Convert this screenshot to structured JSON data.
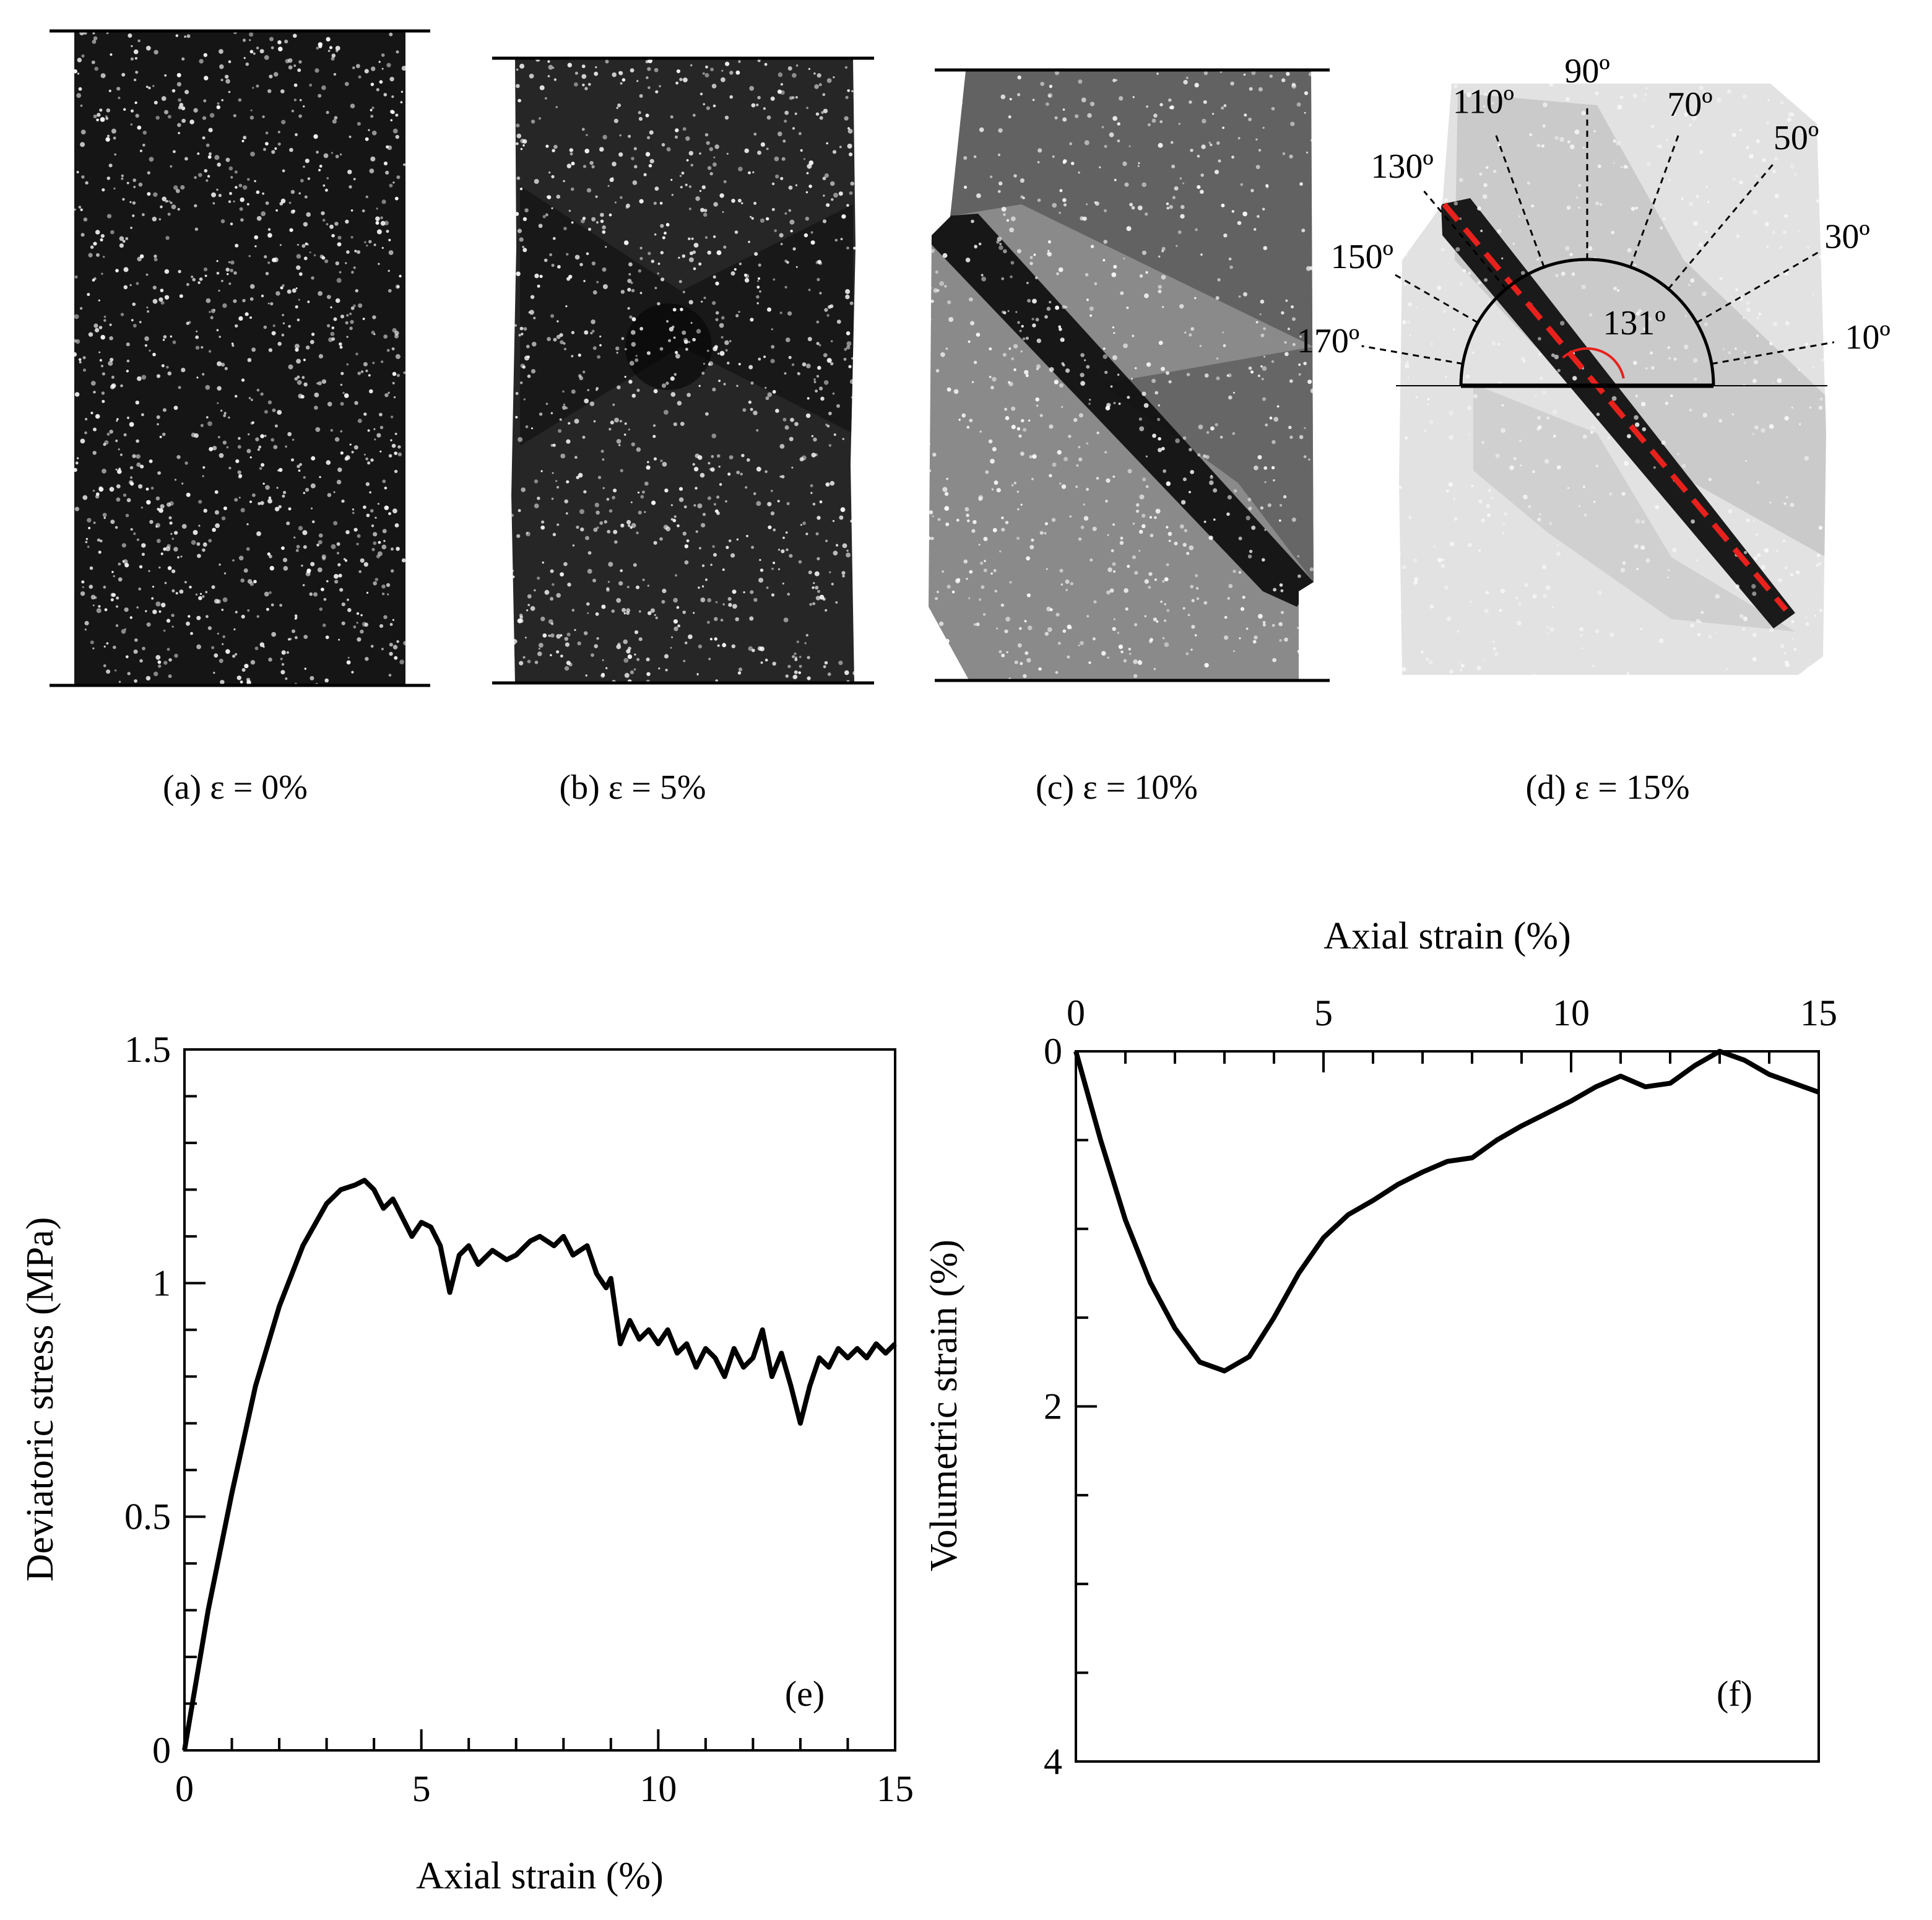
{
  "panels": [
    {
      "id": "a",
      "caption": "(a) ε = 0%",
      "tone": "#151515",
      "speck": 0.85
    },
    {
      "id": "b",
      "caption": "(b) ε = 5%",
      "tone": "#262626",
      "speck": 0.75
    },
    {
      "id": "c",
      "caption": "(c) ε = 10%",
      "tone": "#8a8a8a",
      "speck": 0.55
    },
    {
      "id": "d",
      "caption": "(d) ε = 15%",
      "tone": "#e2e2e2",
      "speck": 0.35
    }
  ],
  "shear_band": {
    "measured_angle_label": "131º",
    "angle_labels": [
      {
        "deg": 10,
        "label": "10º"
      },
      {
        "deg": 30,
        "label": "30º"
      },
      {
        "deg": 50,
        "label": "50º"
      },
      {
        "deg": 70,
        "label": "70º"
      },
      {
        "deg": 90,
        "label": "90º"
      },
      {
        "deg": 110,
        "label": "110º"
      },
      {
        "deg": 130,
        "label": "130º"
      },
      {
        "deg": 150,
        "label": "150º"
      },
      {
        "deg": 170,
        "label": "170º"
      }
    ],
    "band_color": "#e8211d"
  },
  "chart_data": [
    {
      "type": "line",
      "panel_label": "(e)",
      "xlabel": "Axial strain (%)",
      "ylabel": "Deviatoric stress (MPa)",
      "xlim": [
        0,
        15
      ],
      "ylim": [
        0,
        1.5
      ],
      "xticks": [
        0,
        5,
        10,
        15
      ],
      "xtick_labels": [
        "0",
        "5",
        "10",
        "15"
      ],
      "yticks": [
        0,
        0.5,
        1,
        1.5
      ],
      "ytick_labels": [
        "0",
        "0.5",
        "1",
        "1.5"
      ],
      "x_minor_step": 1,
      "y_minor_step": 0.1,
      "series": [
        {
          "x": [
            0,
            0.5,
            1,
            1.5,
            2,
            2.5,
            3,
            3.3,
            3.6,
            3.8,
            4.0,
            4.2,
            4.4,
            4.6,
            4.8,
            5.0,
            5.2,
            5.4,
            5.6,
            5.8,
            6.0,
            6.2,
            6.5,
            6.8,
            7.0,
            7.3,
            7.5,
            7.8,
            8.0,
            8.2,
            8.5,
            8.7,
            8.9,
            9.0,
            9.2,
            9.4,
            9.6,
            9.8,
            10.0,
            10.2,
            10.4,
            10.6,
            10.8,
            11.0,
            11.2,
            11.4,
            11.6,
            11.8,
            12.0,
            12.2,
            12.4,
            12.6,
            12.8,
            13.0,
            13.2,
            13.4,
            13.6,
            13.8,
            14.0,
            14.2,
            14.4,
            14.6,
            14.8,
            15.0
          ],
          "y": [
            0,
            0.3,
            0.55,
            0.78,
            0.95,
            1.08,
            1.17,
            1.2,
            1.21,
            1.22,
            1.2,
            1.16,
            1.18,
            1.14,
            1.1,
            1.13,
            1.12,
            1.08,
            0.98,
            1.06,
            1.08,
            1.04,
            1.07,
            1.05,
            1.06,
            1.09,
            1.1,
            1.08,
            1.1,
            1.06,
            1.08,
            1.02,
            0.99,
            1.01,
            0.87,
            0.92,
            0.88,
            0.9,
            0.87,
            0.9,
            0.85,
            0.87,
            0.82,
            0.86,
            0.84,
            0.8,
            0.86,
            0.82,
            0.84,
            0.9,
            0.8,
            0.85,
            0.78,
            0.7,
            0.78,
            0.84,
            0.82,
            0.86,
            0.84,
            0.86,
            0.84,
            0.87,
            0.85,
            0.87
          ]
        }
      ]
    },
    {
      "type": "line",
      "panel_label": "(f)",
      "xlabel": "Axial strain (%)",
      "ylabel": "Volumetric strain (%)",
      "x_axis_position": "top",
      "y_inverted": true,
      "xlim": [
        0,
        15
      ],
      "ylim": [
        0,
        4
      ],
      "xticks": [
        0,
        5,
        10,
        15
      ],
      "xtick_labels": [
        "0",
        "5",
        "10",
        "15"
      ],
      "yticks": [
        0,
        2,
        4
      ],
      "ytick_labels": [
        "0",
        "2",
        "4"
      ],
      "x_minor_step": 1,
      "y_minor_step": 0.5,
      "series": [
        {
          "x": [
            0,
            0.5,
            1,
            1.5,
            2,
            2.5,
            3,
            3.5,
            4,
            4.5,
            5,
            5.5,
            6,
            6.5,
            7,
            7.5,
            8,
            8.5,
            9,
            9.5,
            10,
            10.5,
            11,
            11.5,
            12,
            12.5,
            13,
            13.5,
            14,
            14.5,
            15
          ],
          "y": [
            0,
            0.5,
            0.95,
            1.3,
            1.56,
            1.75,
            1.8,
            1.72,
            1.5,
            1.25,
            1.05,
            0.92,
            0.84,
            0.75,
            0.68,
            0.62,
            0.6,
            0.5,
            0.42,
            0.35,
            0.28,
            0.2,
            0.14,
            0.2,
            0.18,
            0.08,
            0.0,
            0.05,
            0.13,
            0.18,
            0.23
          ]
        }
      ]
    }
  ]
}
